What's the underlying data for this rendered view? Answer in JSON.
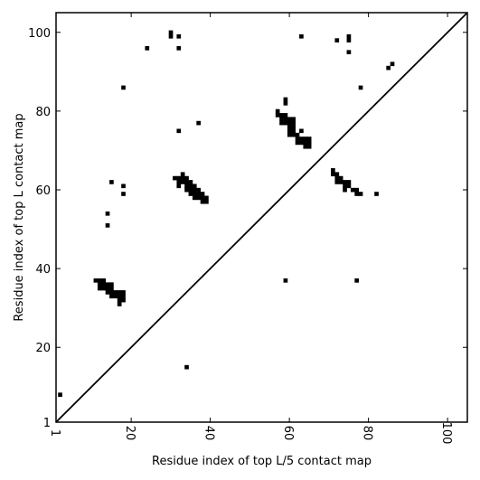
{
  "chart_data": {
    "type": "scatter",
    "title": "",
    "xlabel": "Residue index of top L/5 contact map",
    "ylabel": "Residue index of top L contact map",
    "xlim": [
      1,
      105
    ],
    "ylim": [
      1,
      105
    ],
    "x_ticks": [
      {
        "value": 1,
        "label": "1"
      },
      {
        "value": 20,
        "label": "20"
      },
      {
        "value": 40,
        "label": "40"
      },
      {
        "value": 60,
        "label": "60"
      },
      {
        "value": 80,
        "label": "80"
      },
      {
        "value": 100,
        "label": "100"
      }
    ],
    "y_ticks": [
      {
        "value": 1,
        "label": "1"
      },
      {
        "value": 20,
        "label": "20"
      },
      {
        "value": 40,
        "label": "40"
      },
      {
        "value": 60,
        "label": "60"
      },
      {
        "value": 80,
        "label": "80"
      },
      {
        "value": 100,
        "label": "100"
      }
    ],
    "grid": false,
    "diagonal": true,
    "marker_color": "#000000",
    "points_above_diagonal": [
      [
        30,
        100
      ],
      [
        30,
        99
      ],
      [
        32,
        99
      ],
      [
        32,
        96
      ],
      [
        24,
        96
      ],
      [
        63,
        99
      ],
      [
        72,
        98
      ],
      [
        75,
        99
      ],
      [
        75,
        98
      ],
      [
        75,
        95
      ],
      [
        86,
        92
      ],
      [
        85,
        91
      ],
      [
        18,
        86
      ],
      [
        78,
        86
      ],
      [
        59,
        83
      ],
      [
        59,
        82
      ],
      [
        57,
        80
      ],
      [
        57,
        79
      ],
      [
        58,
        79
      ],
      [
        59,
        79
      ],
      [
        58,
        78
      ],
      [
        59,
        78
      ],
      [
        60,
        78
      ],
      [
        61,
        78
      ],
      [
        58,
        77
      ],
      [
        59,
        77
      ],
      [
        60,
        77
      ],
      [
        61,
        77
      ],
      [
        37,
        77
      ],
      [
        60,
        76
      ],
      [
        61,
        76
      ],
      [
        60,
        75
      ],
      [
        61,
        75
      ],
      [
        32,
        75
      ],
      [
        63,
        75
      ],
      [
        60,
        74
      ],
      [
        61,
        74
      ],
      [
        62,
        74
      ],
      [
        62,
        73
      ],
      [
        63,
        73
      ],
      [
        64,
        73
      ],
      [
        65,
        73
      ],
      [
        62,
        72
      ],
      [
        63,
        72
      ],
      [
        64,
        72
      ],
      [
        65,
        72
      ],
      [
        64,
        71
      ],
      [
        65,
        71
      ],
      [
        71,
        65
      ],
      [
        71,
        64
      ],
      [
        72,
        64
      ],
      [
        72,
        63
      ],
      [
        73,
        63
      ],
      [
        72,
        62
      ],
      [
        73,
        62
      ],
      [
        74,
        62
      ],
      [
        75,
        62
      ],
      [
        74,
        61
      ],
      [
        75,
        61
      ],
      [
        76,
        60
      ],
      [
        77,
        60
      ],
      [
        74,
        60
      ],
      [
        77,
        59
      ],
      [
        78,
        59
      ],
      [
        82,
        59
      ],
      [
        15,
        62
      ],
      [
        18,
        61
      ],
      [
        18,
        59
      ],
      [
        14,
        54
      ],
      [
        14,
        51
      ],
      [
        31,
        63
      ],
      [
        32,
        63
      ],
      [
        33,
        64
      ],
      [
        33,
        63
      ],
      [
        34,
        63
      ],
      [
        32,
        62
      ],
      [
        33,
        62
      ],
      [
        34,
        62
      ],
      [
        35,
        62
      ],
      [
        32,
        61
      ],
      [
        34,
        61
      ],
      [
        35,
        61
      ],
      [
        36,
        61
      ],
      [
        34,
        60
      ],
      [
        35,
        60
      ],
      [
        36,
        60
      ],
      [
        37,
        60
      ],
      [
        35,
        59
      ],
      [
        36,
        59
      ],
      [
        37,
        59
      ],
      [
        38,
        59
      ],
      [
        36,
        58
      ],
      [
        37,
        58
      ],
      [
        38,
        58
      ],
      [
        39,
        58
      ],
      [
        38,
        57
      ],
      [
        39,
        57
      ]
    ],
    "points_below_diagonal": [
      [
        2,
        8
      ],
      [
        34,
        15
      ],
      [
        59,
        37
      ],
      [
        77,
        37
      ],
      [
        11,
        37
      ],
      [
        12,
        37
      ],
      [
        13,
        37
      ],
      [
        12,
        36
      ],
      [
        13,
        36
      ],
      [
        14,
        36
      ],
      [
        15,
        36
      ],
      [
        12,
        35
      ],
      [
        13,
        35
      ],
      [
        14,
        35
      ],
      [
        15,
        35
      ],
      [
        14,
        34
      ],
      [
        15,
        34
      ],
      [
        16,
        34
      ],
      [
        17,
        34
      ],
      [
        18,
        34
      ],
      [
        15,
        33
      ],
      [
        16,
        33
      ],
      [
        17,
        33
      ],
      [
        18,
        33
      ],
      [
        17,
        32
      ],
      [
        18,
        32
      ],
      [
        17,
        31
      ]
    ]
  }
}
